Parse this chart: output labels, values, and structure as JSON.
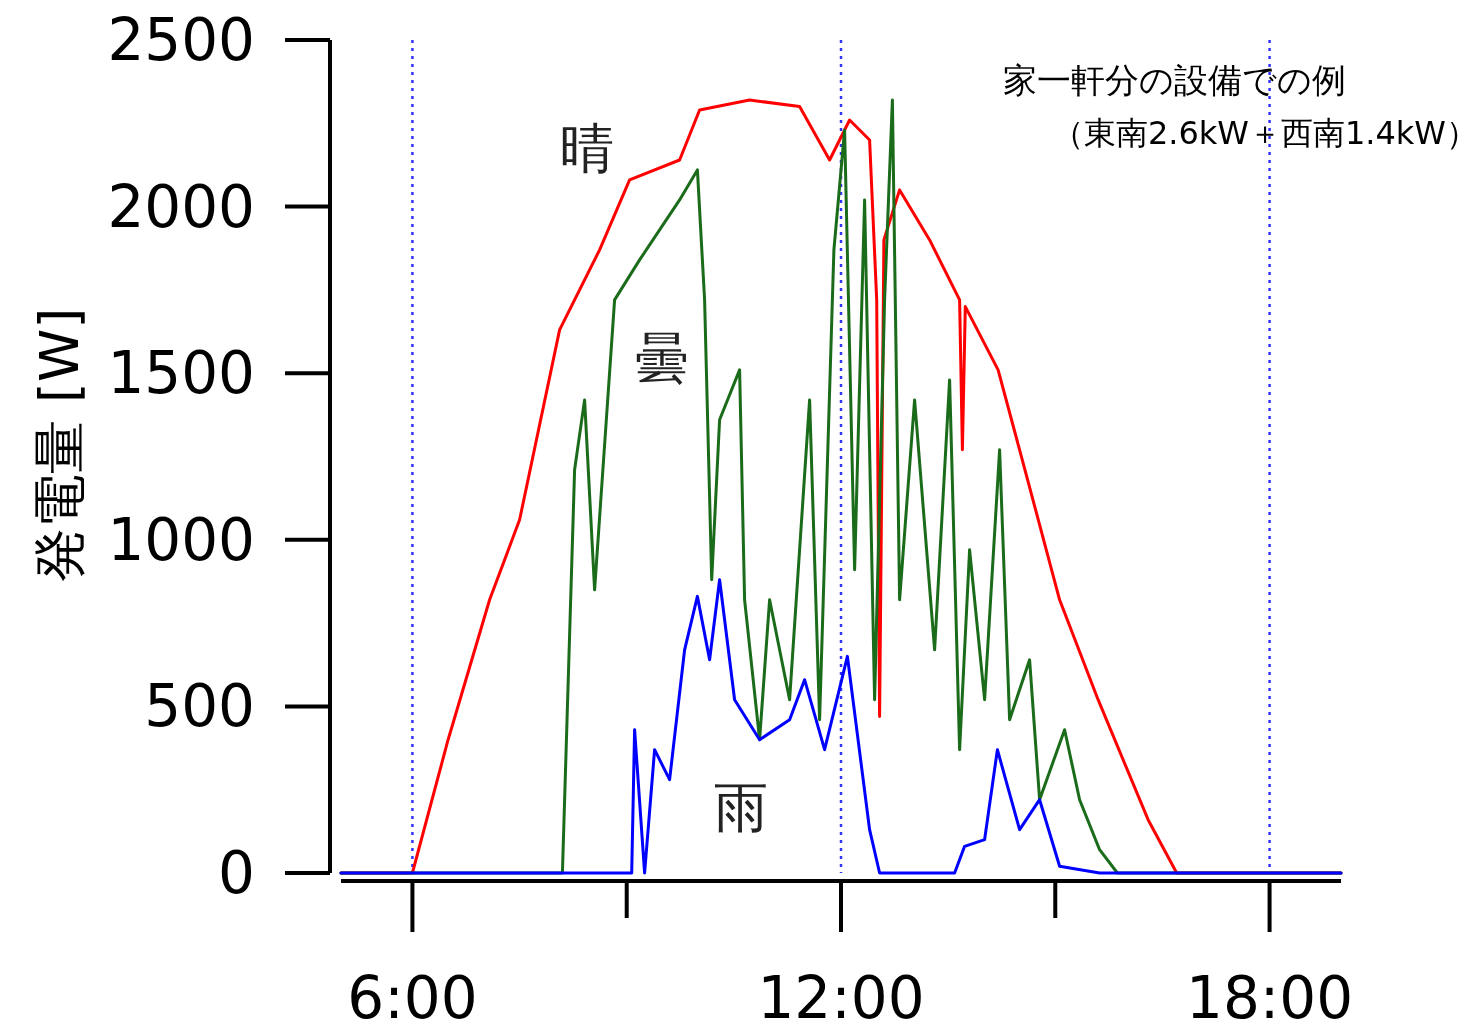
{
  "chart_data": {
    "type": "line",
    "ylabel": "発電量 [W]",
    "annotations": [
      "家一軒分の設備での例",
      "（東南2.6kW＋西南1.4kW）"
    ],
    "xlim": [
      5,
      19
    ],
    "ylim": [
      0,
      2500
    ],
    "xticks": [
      {
        "value": 6,
        "label": "6:00"
      },
      {
        "value": 12,
        "label": "12:00"
      },
      {
        "value": 18,
        "label": "18:00"
      }
    ],
    "yticks": [
      0,
      500,
      1000,
      1500,
      2000,
      2500
    ],
    "ref_lines": [
      {
        "axis": "x",
        "value": 6,
        "color": "#3333ff",
        "line_style": "dotted"
      },
      {
        "axis": "x",
        "value": 12,
        "color": "#3333ff",
        "line_style": "dotted"
      },
      {
        "axis": "x",
        "value": 18,
        "color": "#3333ff",
        "line_style": "dotted"
      }
    ],
    "series": [
      {
        "name": "晴",
        "color": "#ff0000",
        "x": [
          5,
          6,
          6.5,
          7.08,
          7.5,
          8.06,
          8.62,
          9.04,
          9.74,
          10.02,
          10.72,
          11.42,
          11.84,
          12.12,
          12.4,
          12.5,
          12.54,
          12.6,
          12.82,
          13.24,
          13.66,
          13.7,
          13.74,
          14.2,
          14.5,
          15.06,
          15.6,
          16.3,
          16.7,
          19
        ],
        "values": [
          0,
          0,
          400,
          820,
          1060,
          1630,
          1870,
          2080,
          2140,
          2290,
          2320,
          2300,
          2140,
          2260,
          2200,
          1720,
          470,
          1900,
          2050,
          1900,
          1720,
          1270,
          1700,
          1510,
          1270,
          820,
          520,
          160,
          0,
          0
        ]
      },
      {
        "name": "曇",
        "color": "#1a6b1a",
        "x": [
          5,
          8.1,
          8.27,
          8.41,
          8.55,
          8.83,
          9.18,
          9.74,
          9.99,
          10.09,
          10.19,
          10.3,
          10.58,
          10.65,
          10.86,
          11.0,
          11.28,
          11.56,
          11.7,
          11.9,
          12.05,
          12.19,
          12.33,
          12.47,
          12.61,
          12.72,
          12.82,
          13.03,
          13.31,
          13.52,
          13.66,
          13.8,
          14.01,
          14.22,
          14.36,
          14.64,
          14.78,
          15.13,
          15.34,
          15.62,
          15.87,
          19
        ],
        "values": [
          0,
          0,
          1210,
          1420,
          850,
          1720,
          1840,
          2020,
          2110,
          1720,
          880,
          1360,
          1510,
          820,
          400,
          820,
          520,
          1420,
          460,
          1870,
          2230,
          910,
          2020,
          520,
          1720,
          2320,
          820,
          1420,
          670,
          1480,
          370,
          970,
          520,
          1270,
          460,
          640,
          220,
          430,
          220,
          70,
          0,
          0
        ]
      },
      {
        "name": "雨",
        "color": "#0000ff",
        "x": [
          5,
          9.02,
          9.07,
          9.11,
          9.25,
          9.39,
          9.6,
          9.81,
          9.99,
          10.16,
          10.3,
          10.51,
          10.86,
          11.28,
          11.49,
          11.77,
          12.09,
          12.4,
          12.54,
          13.59,
          13.73,
          14.01,
          14.19,
          14.5,
          14.78,
          15.06,
          15.62,
          19
        ],
        "values": [
          0,
          0,
          0,
          430,
          0,
          370,
          280,
          670,
          830,
          640,
          880,
          520,
          400,
          460,
          580,
          370,
          650,
          130,
          0,
          0,
          80,
          100,
          370,
          130,
          220,
          20,
          0,
          0
        ]
      }
    ]
  }
}
